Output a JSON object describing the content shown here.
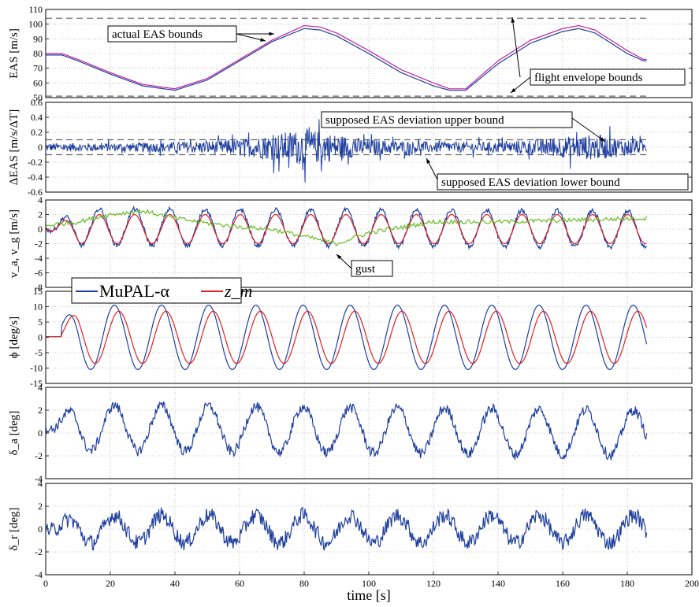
{
  "chart_data": [
    {
      "type": "line",
      "ylabel": "EAS [m/s]",
      "xlim": [
        0,
        200
      ],
      "ylim": [
        50,
        110
      ],
      "yticks": [
        50,
        60,
        70,
        80,
        90,
        100,
        110
      ],
      "grid": true,
      "bounds": [
        {
          "y": 104,
          "style": "dashed"
        },
        {
          "y": 51,
          "style": "dashed"
        }
      ],
      "series": [
        {
          "color": "#1f3f9f",
          "x": [
            0,
            5,
            10,
            20,
            30,
            40,
            50,
            60,
            70,
            80,
            85,
            90,
            100,
            110,
            120,
            125,
            130,
            140,
            150,
            160,
            165,
            170,
            180,
            185
          ],
          "y": [
            79,
            79,
            75,
            66,
            58,
            55,
            62,
            75,
            88,
            97,
            96,
            92,
            80,
            67,
            58,
            55,
            55,
            73,
            87,
            95,
            97,
            94,
            80,
            75
          ]
        },
        {
          "color": "#c0209f",
          "x": [
            0,
            5,
            10,
            20,
            30,
            40,
            50,
            60,
            70,
            80,
            85,
            90,
            100,
            110,
            120,
            125,
            130,
            140,
            150,
            160,
            165,
            170,
            180,
            185
          ],
          "y": [
            80,
            80,
            76,
            67,
            59,
            56,
            63,
            76,
            89,
            99,
            98,
            94,
            82,
            69,
            60,
            56,
            56,
            75,
            89,
            97,
            99,
            96,
            82,
            76
          ]
        }
      ],
      "annotations": [
        "actual EAS bounds",
        "flight envelope bounds"
      ]
    },
    {
      "type": "line",
      "ylabel": "ΔEAS [m/s/ΔT]",
      "xlim": [
        0,
        200
      ],
      "ylim": [
        -0.6,
        0.6
      ],
      "yticks": [
        -0.6,
        -0.4,
        -0.2,
        0,
        0.2,
        0.4,
        0.6
      ],
      "grid": true,
      "bounds": [
        {
          "y": 0.1,
          "style": "dashed"
        },
        {
          "y": -0.1,
          "style": "dashed"
        }
      ],
      "series": [
        {
          "color": "#1f3f9f",
          "x": [
            0,
            20,
            40,
            60,
            70,
            80,
            90,
            100,
            120,
            140,
            160,
            170,
            186
          ],
          "amplitude": [
            0.08,
            0.08,
            0.1,
            0.15,
            0.25,
            0.35,
            0.25,
            0.15,
            0.1,
            0.1,
            0.2,
            0.25,
            0.1
          ]
        }
      ],
      "annotations": [
        "supposed EAS deviation upper bound",
        "supposed EAS deviation lower bound"
      ]
    },
    {
      "type": "line",
      "ylabel": "v_a, v_g [m/s]",
      "xlim": [
        0,
        200
      ],
      "ylim": [
        -8,
        4
      ],
      "yticks": [
        -8,
        -6,
        -4,
        -2,
        0,
        2,
        4
      ],
      "grid": true,
      "series": [
        {
          "name": "MuPAL-α",
          "color": "#1f3f9f",
          "x": [
            0,
            10,
            186
          ],
          "y": [
            0,
            0.3,
            0
          ],
          "oscillation": {
            "amplitude": 2.5,
            "period": 10.9
          }
        },
        {
          "name": "z_m",
          "color": "#e02020",
          "x": [
            0,
            10,
            186
          ],
          "y": [
            0,
            0,
            0
          ],
          "oscillation": {
            "amplitude": 2,
            "period": 10.9
          }
        },
        {
          "color": "#66bb22",
          "x": [
            0,
            10,
            20,
            30,
            40,
            50,
            60,
            70,
            75,
            80,
            85,
            90,
            100,
            120,
            140,
            160,
            186
          ],
          "y": [
            0.5,
            1,
            2,
            2.5,
            1.5,
            0.8,
            0.3,
            0,
            -0.5,
            -1,
            -1.5,
            -2,
            -0.5,
            1,
            1,
            1.2,
            1.5
          ]
        }
      ],
      "legend": {
        "position": "bottom-left",
        "entries": [
          "MuPAL-α",
          "z_m"
        ]
      },
      "annotations": [
        "gust"
      ]
    },
    {
      "type": "line",
      "ylabel": "ϕ [deg/s]",
      "xlim": [
        0,
        200
      ],
      "ylim": [
        -15,
        15
      ],
      "yticks": [
        -15,
        -10,
        -5,
        0,
        5,
        10,
        15
      ],
      "grid": true,
      "series": [
        {
          "color": "#1f3f9f",
          "x": [
            0,
            5,
            15,
            186
          ],
          "y": [
            0,
            0,
            10.5,
            0
          ],
          "oscillation": {
            "amplitude": 10.5,
            "period": 14.6
          }
        },
        {
          "color": "#e02020",
          "x": [
            0,
            5,
            15,
            186
          ],
          "y": [
            0,
            0,
            8.5,
            0
          ],
          "oscillation": {
            "amplitude": 8.5,
            "period": 14.6
          }
        }
      ]
    },
    {
      "type": "line",
      "ylabel": "δ_a [deg]",
      "xlim": [
        0,
        200
      ],
      "ylim": [
        -4,
        4
      ],
      "yticks": [
        -4,
        -2,
        0,
        2,
        4
      ],
      "grid": true,
      "series": [
        {
          "color": "#1f3f9f",
          "x": [
            0,
            186
          ],
          "y": [
            0.5,
            0
          ],
          "oscillation": {
            "amplitude": 2,
            "period": 14.6
          },
          "extremes": {
            "min": -3.8,
            "max": 2.7
          }
        }
      ]
    },
    {
      "type": "line",
      "ylabel": "δ_r [deg]",
      "xlim": [
        0,
        200
      ],
      "ylim": [
        -4,
        4
      ],
      "yticks": [
        -4,
        -2,
        0,
        2,
        4
      ],
      "xticks": [
        0,
        20,
        40,
        60,
        80,
        100,
        120,
        140,
        160,
        180,
        200
      ],
      "xlabel": "time [s]",
      "grid": true,
      "series": [
        {
          "color": "#1f3f9f",
          "x": [
            0,
            186
          ],
          "y": [
            0,
            0
          ],
          "oscillation": {
            "amplitude": 1.2,
            "period": 14.6
          },
          "extremes": {
            "min": -2.2,
            "max": 2
          }
        }
      ]
    }
  ]
}
